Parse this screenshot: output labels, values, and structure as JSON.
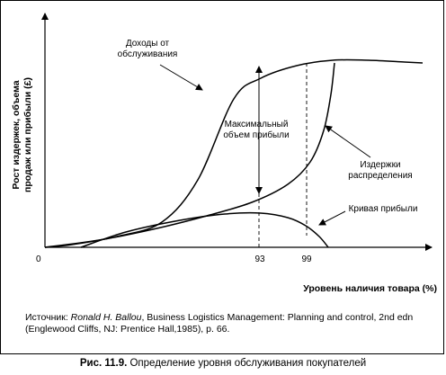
{
  "chart_data": {
    "type": "line",
    "ylabel_line1": "Рост издержек, объема",
    "ylabel_line2": "продаж или прибыли (£)",
    "xlabel": "Уровень наличия товара (%)",
    "x_origin_label": "0",
    "x_ticks": [
      "93",
      "99"
    ],
    "series": [
      {
        "name": "Доходы от обслуживания",
        "label_lines": [
          "Доходы от",
          "обслуживания"
        ],
        "points": [
          [
            0,
            0
          ],
          [
            30,
            3
          ],
          [
            80,
            12
          ],
          [
            130,
            28
          ],
          [
            170,
            75
          ],
          [
            210,
            165
          ],
          [
            240,
            188
          ],
          [
            280,
            202
          ],
          [
            320,
            208
          ],
          [
            360,
            208
          ],
          [
            400,
            206
          ],
          [
            420,
            205
          ]
        ]
      },
      {
        "name": "Издержки распределения",
        "label_lines": [
          "Издержки",
          "распределения"
        ],
        "points": [
          [
            0,
            0
          ],
          [
            60,
            8
          ],
          [
            120,
            20
          ],
          [
            180,
            35
          ],
          [
            230,
            50
          ],
          [
            270,
            70
          ],
          [
            295,
            95
          ],
          [
            310,
            130
          ],
          [
            318,
            170
          ],
          [
            322,
            205
          ]
        ]
      },
      {
        "name": "Кривая прибыли",
        "label_lines": [
          "Кривая прибыли"
        ],
        "points": [
          [
            40,
            0
          ],
          [
            90,
            17
          ],
          [
            150,
            30
          ],
          [
            200,
            37
          ],
          [
            240,
            38
          ],
          [
            270,
            33
          ],
          [
            290,
            24
          ],
          [
            305,
            12
          ],
          [
            315,
            0
          ]
        ]
      }
    ],
    "annotation_lines": [
      "Максимальный",
      "объем прибыли"
    ]
  },
  "source": {
    "prefix": "Источник: ",
    "author": "Ronald H. Ballou",
    "rest": ", Business Logistics Management: Planning and control, 2nd edn (Englewood Cliffs, NJ: Prentice Hall,1985), p. 66."
  },
  "caption": {
    "number": "Рис. 11.9.",
    "text": " Определение уровня обслуживания покупателей"
  }
}
